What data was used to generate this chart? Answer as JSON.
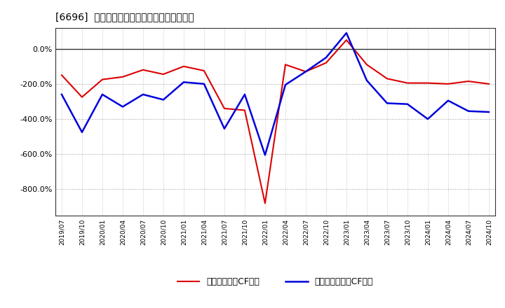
{
  "title": "[6696]  流動負債キャッシュフロー比率の推移",
  "legend_labels": [
    "流動負債営業CF比率",
    "流動負債フリーCF比率"
  ],
  "line_colors": [
    "#dd0000",
    "#0000dd"
  ],
  "fig_bg_color": "#ffffff",
  "plot_bg_color": "#ffffff",
  "ylim": [
    -950,
    120
  ],
  "yticks": [
    0,
    -200,
    -400,
    -600,
    -800
  ],
  "x_labels": [
    "2019/07",
    "2019/10",
    "2020/01",
    "2020/04",
    "2020/07",
    "2020/10",
    "2021/01",
    "2021/04",
    "2021/07",
    "2021/10",
    "2022/01",
    "2022/04",
    "2022/07",
    "2022/10",
    "2023/01",
    "2023/04",
    "2023/07",
    "2023/10",
    "2024/01",
    "2024/04",
    "2024/07",
    "2024/10"
  ],
  "red_y": [
    -150,
    -275,
    -175,
    -160,
    -120,
    -145,
    -100,
    -125,
    -340,
    -350,
    -880,
    -90,
    -130,
    -80,
    50,
    -90,
    -170,
    -195,
    -195,
    -200,
    -185,
    -200
  ],
  "blue_y": [
    -260,
    -475,
    -260,
    -330,
    -260,
    -290,
    -190,
    -200,
    -455,
    -260,
    -605,
    -205,
    -130,
    -50,
    90,
    -180,
    -310,
    -315,
    -400,
    -295,
    -355,
    -360
  ]
}
